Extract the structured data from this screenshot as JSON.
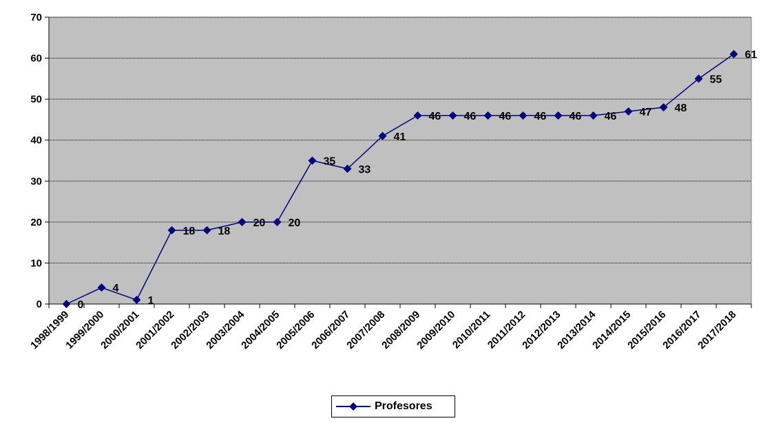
{
  "chart_data": {
    "type": "line",
    "categories": [
      "1998/1999",
      "1999/2000",
      "2000/2001",
      "2001/2002",
      "2002/2003",
      "2003/2004",
      "2004/2005",
      "2005/2006",
      "2006/2007",
      "2007/2008",
      "2008/2009",
      "2009/2010",
      "2010/2011",
      "2011/2012",
      "2012/2013",
      "2013/2014",
      "2014/2015",
      "2015/2016",
      "2016/2017",
      "2017/2018"
    ],
    "series": [
      {
        "name": "Profesores",
        "values": [
          0,
          4,
          1,
          18,
          18,
          20,
          20,
          35,
          33,
          41,
          46,
          46,
          46,
          46,
          46,
          46,
          47,
          48,
          55,
          61
        ]
      }
    ],
    "ylim": [
      0,
      70
    ],
    "yticks": [
      0,
      10,
      20,
      30,
      40,
      50,
      60,
      70
    ],
    "grid": true,
    "legend_position": "bottom-center",
    "colors": {
      "line": "#000080",
      "plot_bg": "#C0C0C0"
    }
  }
}
